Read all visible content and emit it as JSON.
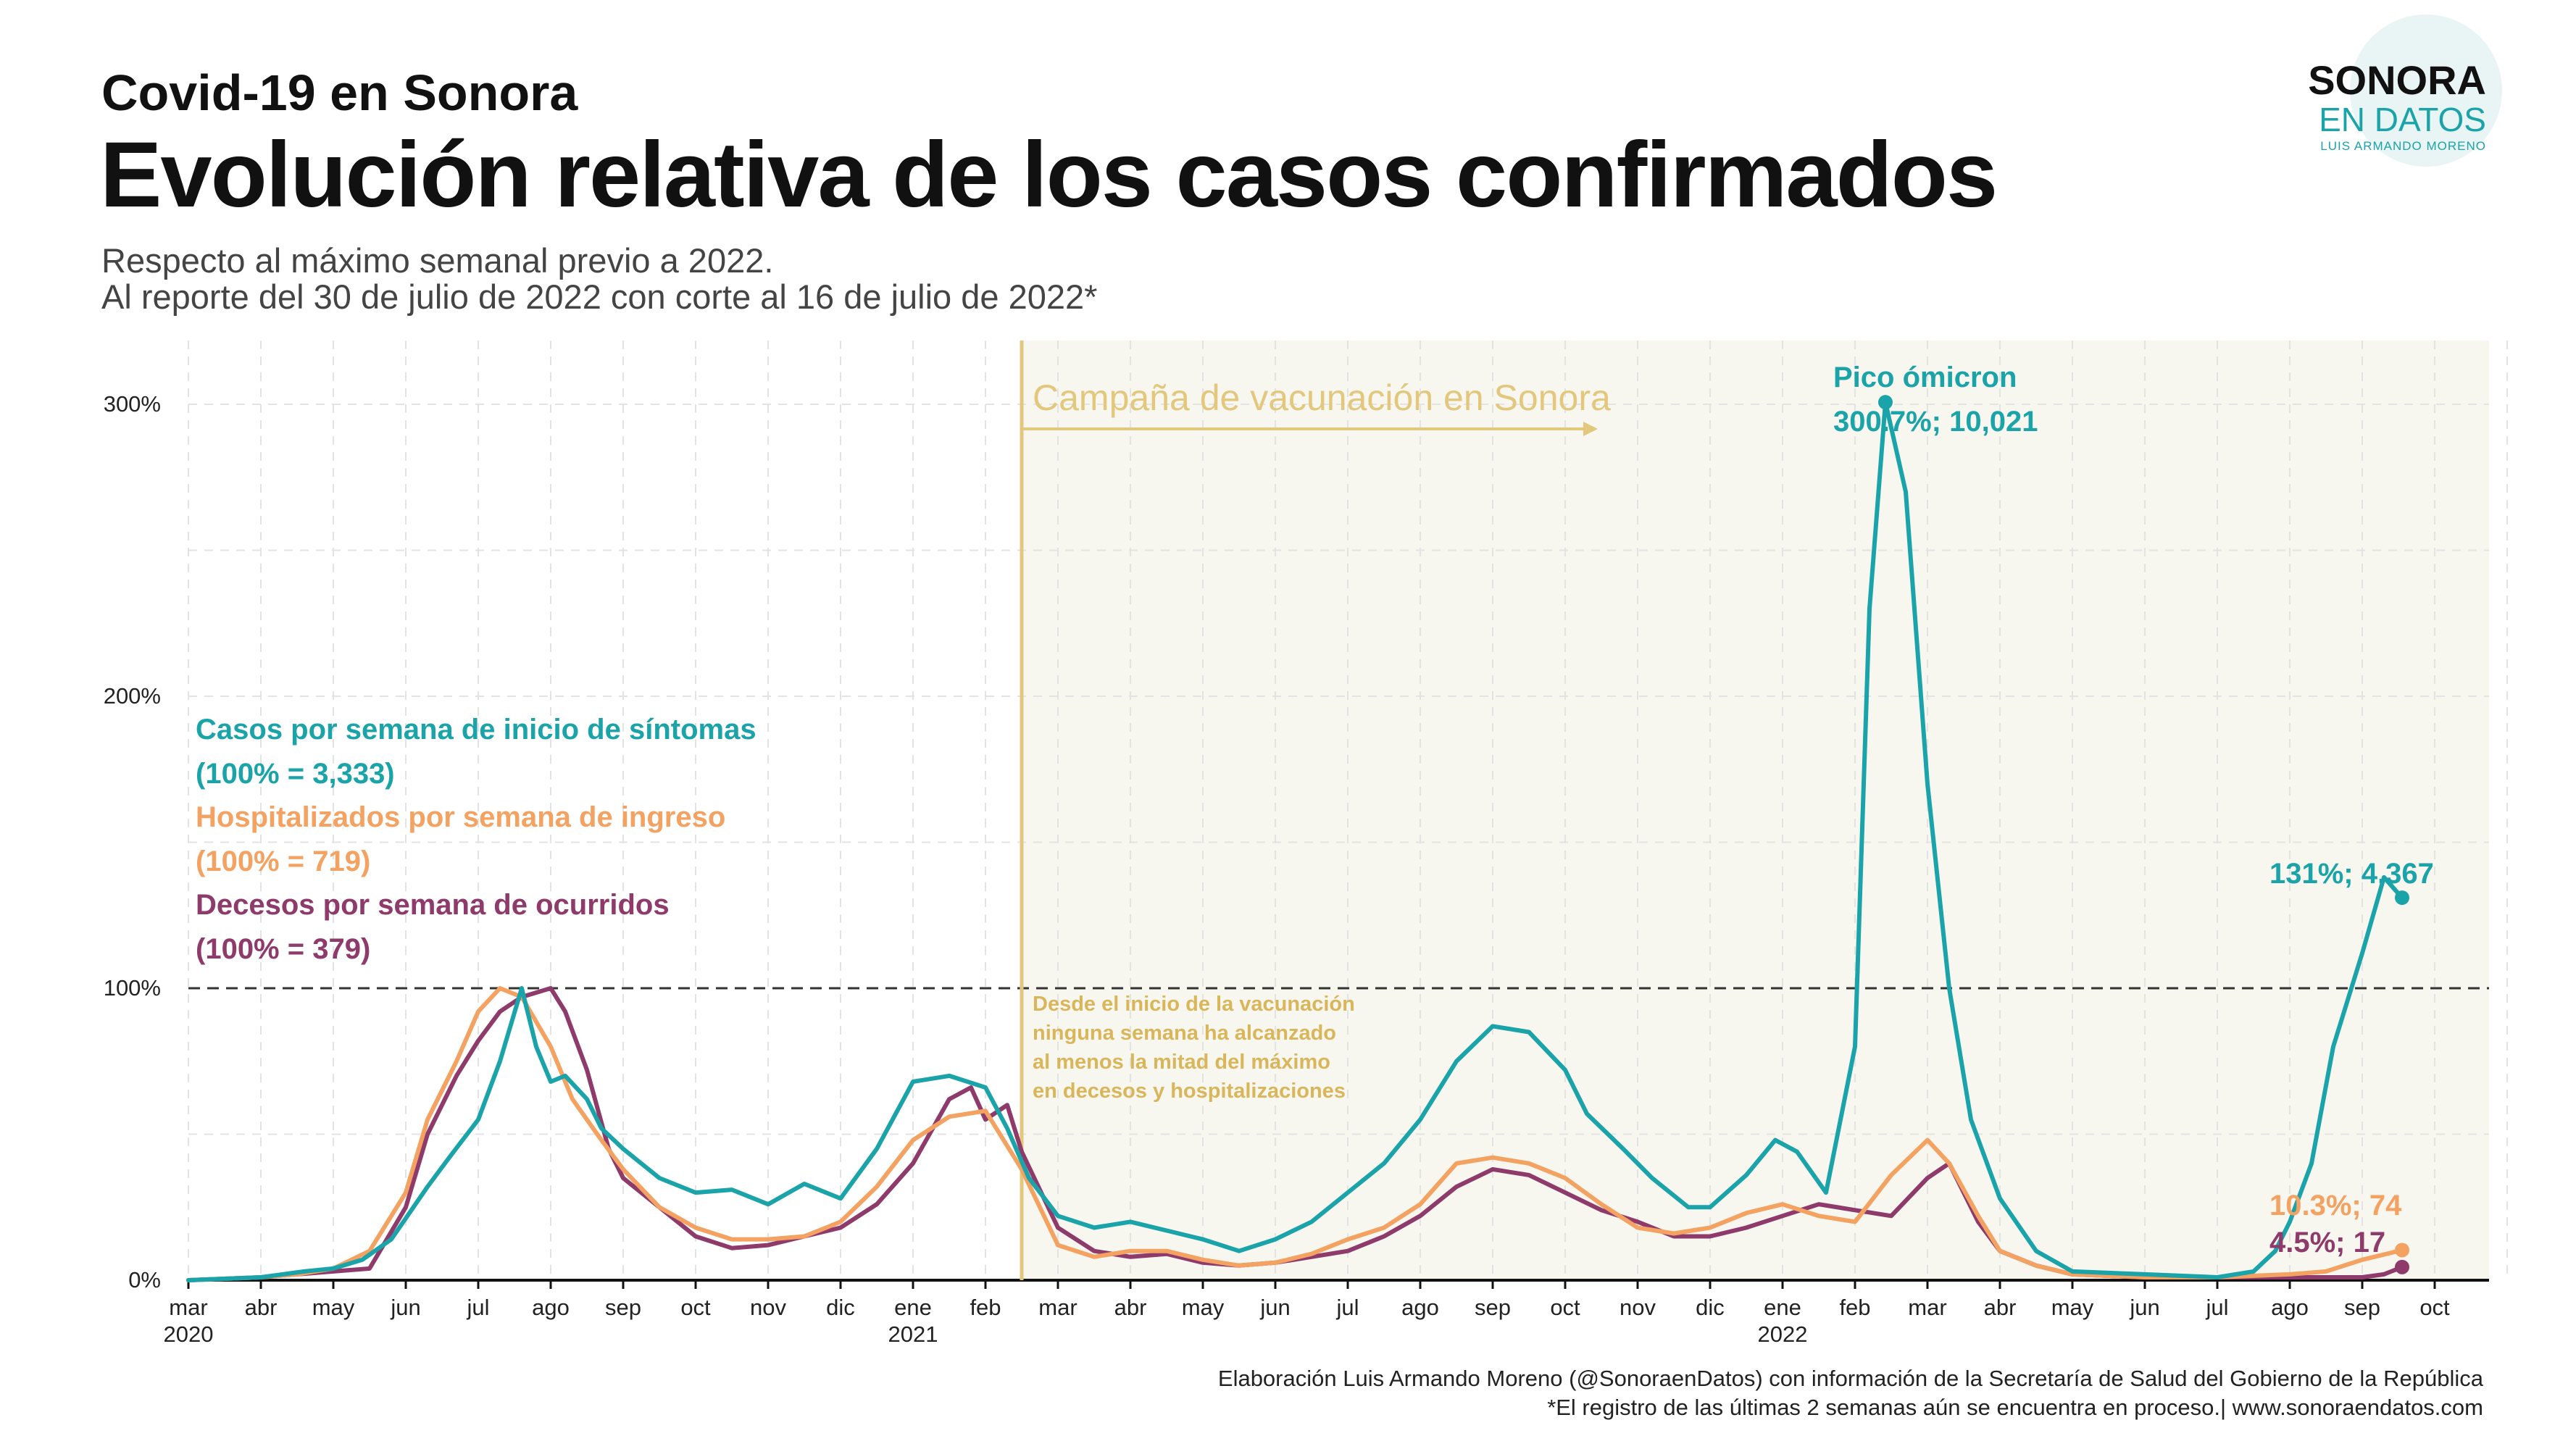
{
  "header": {
    "subtitle": "Covid-19  en Sonora",
    "title": "Evolución relativa de los casos confirmados",
    "desc_line1": "Respecto al máximo semanal previo a 2022.",
    "desc_line2": "Al reporte del 30 de julio de 2022 con corte al 16 de julio de 2022*"
  },
  "logo": {
    "word1": "SONORA",
    "word2": "EN DATOS",
    "word3": "LUIS ARMANDO MORENO"
  },
  "footer": {
    "line1": "Elaboración Luis Armando Moreno (@SonoraenDatos) con información de la Secretaría de Salud del Gobierno de la República",
    "line2": "*El registro de las últimas 2 semanas aún se encuentra en proceso.| www.sonoraendatos.com"
  },
  "colors": {
    "cases": "#1aa3a8",
    "hosp": "#f4a261",
    "deaths": "#8e3a6b",
    "vaccine": "#e2c77d",
    "shade": "#f7f6ef"
  },
  "chart_data": {
    "type": "line",
    "x_unit": "months since mar 2020",
    "x_range": [
      0,
      32
    ],
    "ylim": [
      0,
      320
    ],
    "yticks": [
      0,
      100,
      200,
      300
    ],
    "ytick_labels": [
      "0%",
      "100%",
      "200%",
      "300%"
    ],
    "xtick_labels": [
      "mar",
      "abr",
      "may",
      "jun",
      "jul",
      "ago",
      "sep",
      "oct",
      "nov",
      "dic",
      "ene",
      "feb",
      "mar",
      "abr",
      "may",
      "jun",
      "jul",
      "ago",
      "sep",
      "oct",
      "nov",
      "dic",
      "ene",
      "feb",
      "mar",
      "abr",
      "may",
      "jun",
      "jul",
      "ago",
      "sep",
      "oct"
    ],
    "year_labels": [
      {
        "x": 0,
        "label": "2020"
      },
      {
        "x": 10,
        "label": "2021"
      },
      {
        "x": 22,
        "label": "2022"
      }
    ],
    "reference_line": 100,
    "vaccination_start": 11.5,
    "series": [
      {
        "name": "Casos por semana de inicio de síntomas",
        "legend_sub": "(100% = 3,333)",
        "color": "#1aa3a8",
        "points": [
          [
            0,
            0
          ],
          [
            1,
            1
          ],
          [
            1.6,
            3
          ],
          [
            2,
            4
          ],
          [
            2.4,
            7
          ],
          [
            2.8,
            14
          ],
          [
            3.3,
            32
          ],
          [
            3.6,
            42
          ],
          [
            4,
            55
          ],
          [
            4.3,
            75
          ],
          [
            4.6,
            100
          ],
          [
            4.8,
            80
          ],
          [
            5,
            68
          ],
          [
            5.2,
            70
          ],
          [
            5.5,
            62
          ],
          [
            5.7,
            52
          ],
          [
            6,
            45
          ],
          [
            6.5,
            35
          ],
          [
            7,
            30
          ],
          [
            7.5,
            31
          ],
          [
            8,
            26
          ],
          [
            8.5,
            33
          ],
          [
            9,
            28
          ],
          [
            9.5,
            45
          ],
          [
            10,
            68
          ],
          [
            10.5,
            70
          ],
          [
            11,
            66
          ],
          [
            11.3,
            52
          ],
          [
            11.6,
            35
          ],
          [
            12,
            22
          ],
          [
            12.5,
            18
          ],
          [
            13,
            20
          ],
          [
            13.5,
            17
          ],
          [
            14,
            14
          ],
          [
            14.5,
            10
          ],
          [
            15,
            14
          ],
          [
            15.5,
            20
          ],
          [
            16,
            30
          ],
          [
            16.5,
            40
          ],
          [
            17,
            55
          ],
          [
            17.5,
            75
          ],
          [
            18,
            87
          ],
          [
            18.5,
            85
          ],
          [
            19,
            72
          ],
          [
            19.3,
            57
          ],
          [
            19.8,
            45
          ],
          [
            20.2,
            35
          ],
          [
            20.7,
            25
          ],
          [
            21,
            25
          ],
          [
            21.5,
            36
          ],
          [
            21.9,
            48
          ],
          [
            22.2,
            44
          ],
          [
            22.6,
            30
          ],
          [
            23,
            80
          ],
          [
            23.2,
            230
          ],
          [
            23.42,
            300.7
          ],
          [
            23.7,
            270
          ],
          [
            24,
            170
          ],
          [
            24.3,
            100
          ],
          [
            24.6,
            55
          ],
          [
            25,
            28
          ],
          [
            25.5,
            10
          ],
          [
            26,
            3
          ],
          [
            27,
            2
          ],
          [
            28,
            1
          ],
          [
            28.5,
            3
          ],
          [
            28.8,
            10
          ],
          [
            29,
            20
          ],
          [
            29.3,
            40
          ],
          [
            29.6,
            80
          ],
          [
            30,
            112
          ],
          [
            30.3,
            138
          ],
          [
            30.55,
            131
          ]
        ]
      },
      {
        "name": "Hospitalizados por semana de ingreso",
        "legend_sub": "(100% = 719)",
        "color": "#f4a261",
        "points": [
          [
            0,
            0
          ],
          [
            1,
            1
          ],
          [
            1.5,
            2
          ],
          [
            2,
            4
          ],
          [
            2.5,
            10
          ],
          [
            3,
            30
          ],
          [
            3.3,
            55
          ],
          [
            3.7,
            75
          ],
          [
            4,
            92
          ],
          [
            4.3,
            100
          ],
          [
            4.6,
            97
          ],
          [
            5,
            80
          ],
          [
            5.3,
            62
          ],
          [
            5.7,
            48
          ],
          [
            6,
            38
          ],
          [
            6.5,
            25
          ],
          [
            7,
            18
          ],
          [
            7.5,
            14
          ],
          [
            8,
            14
          ],
          [
            8.5,
            15
          ],
          [
            9,
            20
          ],
          [
            9.5,
            32
          ],
          [
            10,
            48
          ],
          [
            10.5,
            56
          ],
          [
            11,
            58
          ],
          [
            11.5,
            38
          ],
          [
            12,
            12
          ],
          [
            12.5,
            8
          ],
          [
            13,
            10
          ],
          [
            13.5,
            10
          ],
          [
            14,
            7
          ],
          [
            14.5,
            5
          ],
          [
            15,
            6
          ],
          [
            15.5,
            9
          ],
          [
            16,
            14
          ],
          [
            16.5,
            18
          ],
          [
            17,
            26
          ],
          [
            17.5,
            40
          ],
          [
            18,
            42
          ],
          [
            18.5,
            40
          ],
          [
            19,
            35
          ],
          [
            19.5,
            26
          ],
          [
            20,
            18
          ],
          [
            20.5,
            16
          ],
          [
            21,
            18
          ],
          [
            21.5,
            23
          ],
          [
            22,
            26
          ],
          [
            22.5,
            22
          ],
          [
            23,
            20
          ],
          [
            23.5,
            36
          ],
          [
            24,
            48
          ],
          [
            24.3,
            40
          ],
          [
            24.7,
            22
          ],
          [
            25,
            10
          ],
          [
            25.5,
            5
          ],
          [
            26,
            2
          ],
          [
            27,
            1
          ],
          [
            28,
            1
          ],
          [
            29,
            2
          ],
          [
            29.5,
            3
          ],
          [
            30,
            7
          ],
          [
            30.55,
            10.3
          ]
        ]
      },
      {
        "name": "Decesos por semana de ocurridos",
        "legend_sub": "(100% = 379)",
        "color": "#8e3a6b",
        "points": [
          [
            0,
            0
          ],
          [
            1,
            1
          ],
          [
            1.5,
            2
          ],
          [
            2,
            3
          ],
          [
            2.5,
            4
          ],
          [
            3,
            25
          ],
          [
            3.3,
            50
          ],
          [
            3.7,
            70
          ],
          [
            4,
            82
          ],
          [
            4.3,
            92
          ],
          [
            4.6,
            97
          ],
          [
            5,
            100
          ],
          [
            5.2,
            92
          ],
          [
            5.5,
            72
          ],
          [
            5.8,
            45
          ],
          [
            6,
            35
          ],
          [
            6.5,
            25
          ],
          [
            7,
            15
          ],
          [
            7.5,
            11
          ],
          [
            8,
            12
          ],
          [
            8.5,
            15
          ],
          [
            9,
            18
          ],
          [
            9.5,
            26
          ],
          [
            10,
            40
          ],
          [
            10.5,
            62
          ],
          [
            10.8,
            66
          ],
          [
            11,
            55
          ],
          [
            11.3,
            60
          ],
          [
            11.5,
            44
          ],
          [
            12,
            18
          ],
          [
            12.5,
            10
          ],
          [
            13,
            8
          ],
          [
            13.5,
            9
          ],
          [
            14,
            6
          ],
          [
            14.5,
            5
          ],
          [
            15,
            6
          ],
          [
            15.5,
            8
          ],
          [
            16,
            10
          ],
          [
            16.5,
            15
          ],
          [
            17,
            22
          ],
          [
            17.5,
            32
          ],
          [
            18,
            38
          ],
          [
            18.5,
            36
          ],
          [
            19,
            30
          ],
          [
            19.5,
            24
          ],
          [
            20,
            20
          ],
          [
            20.5,
            15
          ],
          [
            21,
            15
          ],
          [
            21.5,
            18
          ],
          [
            22,
            22
          ],
          [
            22.5,
            26
          ],
          [
            23,
            24
          ],
          [
            23.5,
            22
          ],
          [
            24,
            35
          ],
          [
            24.3,
            40
          ],
          [
            24.7,
            20
          ],
          [
            25,
            10
          ],
          [
            25.5,
            5
          ],
          [
            26,
            2
          ],
          [
            27,
            1
          ],
          [
            28,
            1
          ],
          [
            29,
            1
          ],
          [
            30,
            1
          ],
          [
            30.3,
            2
          ],
          [
            30.55,
            4.5
          ]
        ]
      }
    ],
    "annotations": {
      "vaccine_label": "Campaña de vacunación en Sonora",
      "vaccine_note": [
        "Desde el inicio de la vacunación",
        "ninguna semana ha alcanzado",
        "al menos la mitad del máximo",
        "en decesos y hospitalizaciones"
      ],
      "peak_title": "Pico ómicron",
      "peak_value": "300.7%; 10,021",
      "end_cases": "131%; 4,367",
      "end_hosp": "10.3%; 74",
      "end_deaths": "4.5%; 17"
    }
  }
}
